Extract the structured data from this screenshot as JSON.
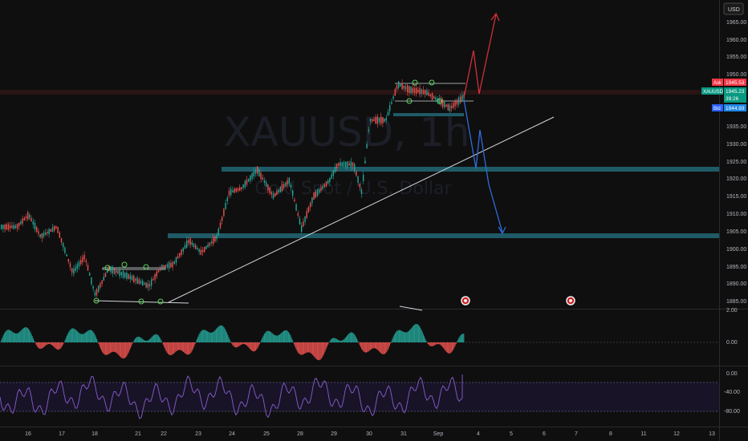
{
  "header": {
    "currency_button": "USD"
  },
  "watermark": {
    "symbol": "XAUUSD, 1h",
    "description": "Gold Spot / U.S. Dollar"
  },
  "price_axis": {
    "ticks": [
      "1965.00",
      "1960.00",
      "1955.00",
      "1950.00",
      "1945.00",
      "1940.00",
      "1935.00",
      "1930.00",
      "1925.00",
      "1920.00",
      "1915.00",
      "1910.00",
      "1905.00",
      "1900.00",
      "1895.00",
      "1890.00",
      "1885.00"
    ],
    "ask_tag": "Ask",
    "ask_value": "1945.53",
    "symbol_tag": "XAUUSD",
    "last_value": "1945.23",
    "countdown": "39:26",
    "bid_tag": "Bid",
    "bid_value": "1944.93",
    "colors": {
      "ask": "#f23645",
      "last": "#089981",
      "bid": "#2962ff"
    }
  },
  "oscillator_axis": {
    "ticks": [
      "2.00",
      "0.00"
    ]
  },
  "rsi_axis": {
    "ticks": [
      "0.00",
      "-40.00",
      "-80.00"
    ]
  },
  "time_axis": {
    "ticks": [
      "16",
      "17",
      "18",
      "21",
      "22",
      "23",
      "24",
      "25",
      "28",
      "29",
      "30",
      "31",
      "Sep",
      "4",
      "5",
      "6",
      "7",
      "8",
      "11",
      "12",
      "13"
    ]
  },
  "event_icons": [
    "economic-event-icon",
    "economic-event-icon"
  ]
}
